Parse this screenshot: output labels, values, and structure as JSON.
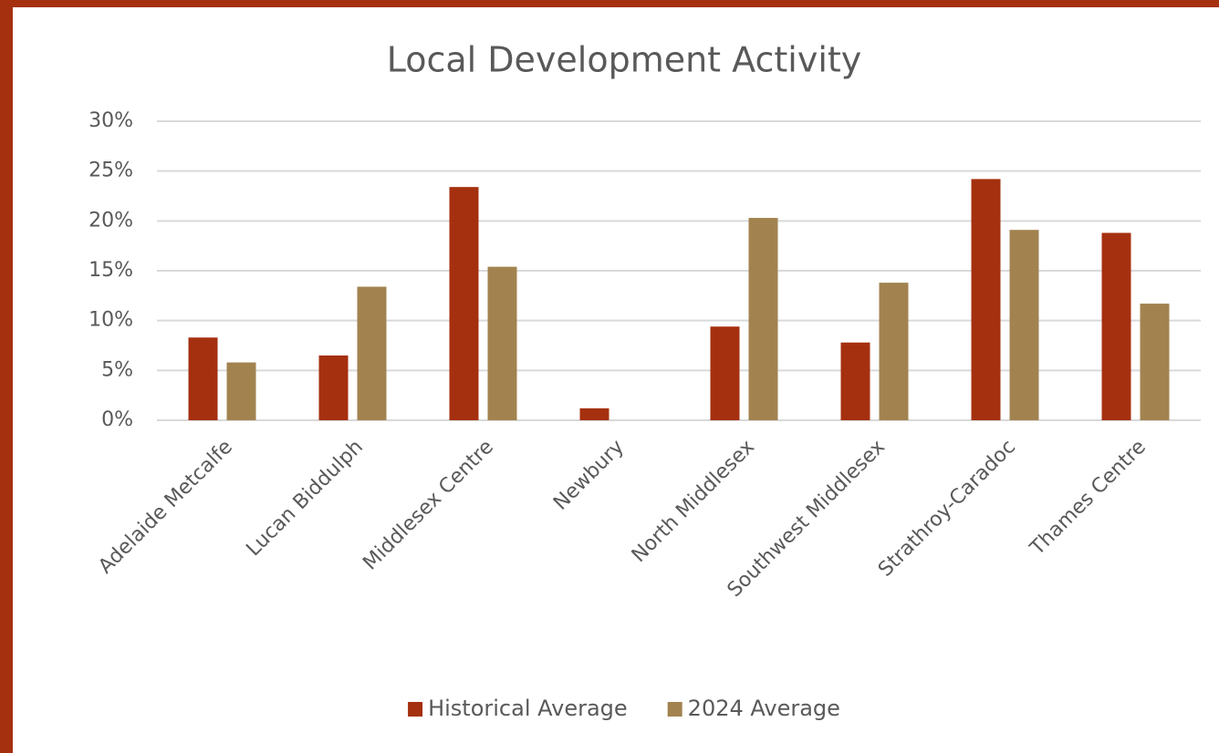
{
  "chart_data": {
    "type": "bar",
    "title": "Local Development Activity",
    "categories": [
      "Adelaide Metcalfe",
      "Lucan Biddulph",
      "Middlesex Centre",
      "Newbury",
      "North Middlesex",
      "Southwest Middlesex",
      "Strathroy-Caradoc",
      "Thames Centre"
    ],
    "series": [
      {
        "name": "Historical Average",
        "color": "#a5300f",
        "values": [
          8.3,
          6.5,
          23.4,
          1.2,
          9.4,
          7.8,
          24.2,
          18.8
        ]
      },
      {
        "name": "2024 Average",
        "color": "#a2834f",
        "values": [
          5.8,
          13.4,
          15.4,
          0,
          20.3,
          13.8,
          19.1,
          11.7
        ]
      }
    ],
    "ylim": [
      0,
      30
    ],
    "yticks": [
      {
        "value": 0,
        "label": "0%"
      },
      {
        "value": 5,
        "label": "5%"
      },
      {
        "value": 10,
        "label": "10%"
      },
      {
        "value": 15,
        "label": "15%"
      },
      {
        "value": 20,
        "label": "20%"
      },
      {
        "value": 25,
        "label": "25%"
      },
      {
        "value": 30,
        "label": "30%"
      }
    ],
    "grid": true,
    "legend": "bottom"
  }
}
